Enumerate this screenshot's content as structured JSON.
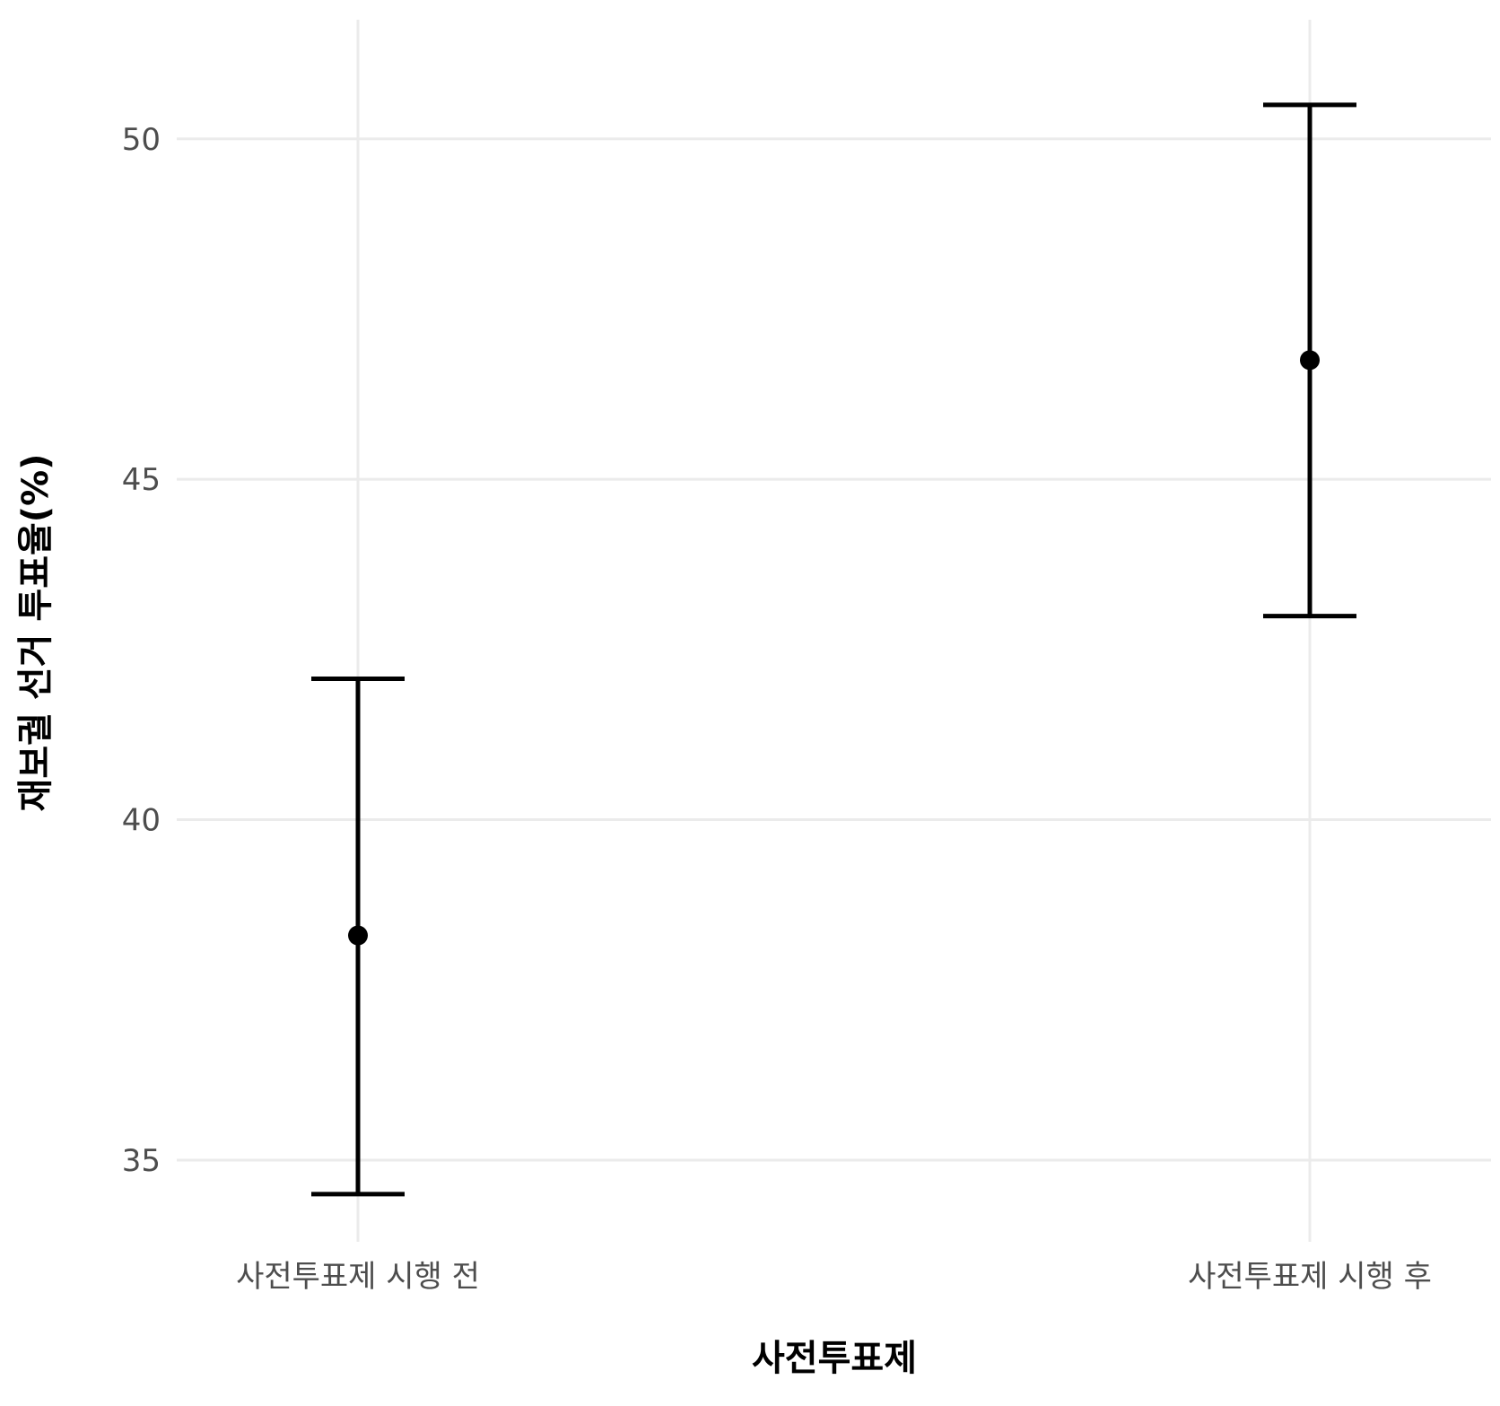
{
  "chart_data": {
    "type": "errorbar",
    "xlabel": "사전투표제",
    "ylabel": "재보궐 선거 투표율(%)",
    "categories": [
      "사전투표제 시행 전",
      "사전투표제 시행 후"
    ],
    "values": [
      38.3,
      46.75
    ],
    "lower": [
      34.5,
      42.99
    ],
    "upper": [
      42.07,
      50.5
    ],
    "ylim": [
      33.8,
      51.75
    ],
    "yticks": [
      35,
      40,
      45,
      50
    ],
    "grid": true,
    "legend": "none",
    "colors": {
      "marks": "#000000",
      "grid": "#ebebeb",
      "tick_text": "#4d4d4d"
    }
  }
}
